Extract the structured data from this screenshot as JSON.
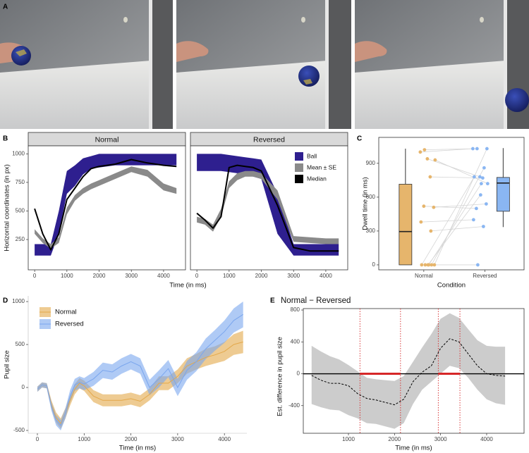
{
  "panel_a": {
    "label": "A"
  },
  "chart_data": [
    {
      "type": "band",
      "label": "B",
      "facets": [
        "Normal",
        "Reversed"
      ],
      "xlabel": "Time (in ms)",
      "ylabel": "Horizontal coordinates (in px)",
      "legend": "right",
      "x": [
        0,
        250,
        500,
        750,
        1000,
        1250,
        1500,
        1750,
        2000,
        2500,
        3000,
        3500,
        4000,
        4400
      ],
      "series": [
        {
          "name": "Ball",
          "color": "#2e1f8f",
          "lower": [
            [
              110,
              110,
              110,
              300,
              650,
              720,
              820,
              870,
              880,
              900,
              900,
              900,
              900,
              900
            ],
            [
              850,
              850,
              850,
              850,
              840,
              830,
              820,
              800,
              780,
              300,
              110,
              110,
              110,
              110
            ]
          ],
          "upper": [
            [
              210,
              210,
              210,
              500,
              850,
              900,
              960,
              980,
              1000,
              1000,
              1000,
              1000,
              1000,
              1000
            ],
            [
              1000,
              1000,
              1000,
              1000,
              990,
              980,
              970,
              960,
              950,
              650,
              210,
              210,
              210,
              210
            ]
          ]
        },
        {
          "name": "Mean ± SE",
          "color": "#8a8a8a",
          "lower": [
            [
              300,
              220,
              170,
              220,
              470,
              590,
              650,
              690,
              720,
              780,
              840,
              800,
              680,
              650
            ],
            [
              400,
              380,
              320,
              450,
              700,
              770,
              800,
              800,
              780,
              600,
              230,
              220,
              210,
              210
            ]
          ],
          "upper": [
            [
              340,
              260,
              210,
              270,
              530,
              640,
              700,
              740,
              770,
              830,
              890,
              860,
              740,
              700
            ],
            [
              450,
              430,
              380,
              520,
              760,
              830,
              850,
              850,
              830,
              680,
              280,
              270,
              260,
              260
            ]
          ]
        },
        {
          "name": "Median",
          "color": "#000000",
          "values": [
            [
              520,
              300,
              160,
              300,
              600,
              700,
              800,
              870,
              890,
              910,
              950,
              920,
              900,
              890
            ],
            [
              480,
              420,
              350,
              450,
              880,
              900,
              890,
              880,
              850,
              550,
              180,
              150,
              150,
              150
            ]
          ]
        }
      ],
      "xlim": [
        -200,
        4680
      ],
      "ylim": [
        -15,
        1070
      ],
      "xticks": [
        0,
        1000,
        2000,
        3000,
        4000
      ],
      "yticks": [
        250,
        500,
        750,
        1000
      ]
    },
    {
      "type": "box",
      "label": "C",
      "xlabel": "Condition",
      "ylabel": "Dwell time (in ms)",
      "categories": [
        "Normal",
        "Reversed"
      ],
      "colors": [
        "#e6b56c",
        "#8ab6f2"
      ],
      "boxes": [
        {
          "min": 0,
          "q1": 0,
          "median": 295,
          "q3": 715,
          "max": 1030
        },
        {
          "min": 335,
          "q1": 475,
          "median": 725,
          "q3": 775,
          "max": 1035
        }
      ],
      "points": [
        [
          1000,
          780,
          520,
          510,
          940,
          380,
          300,
          1020,
          0,
          0,
          0,
          0,
          0,
          930,
          0
        ],
        [
          1030,
          770,
          500,
          540,
          780,
          400,
          340,
          1030,
          1030,
          620,
          780,
          860,
          0,
          720,
          720
        ]
      ],
      "ylim": [
        -44,
        1130
      ],
      "yticks": [
        0,
        300,
        600,
        900
      ]
    },
    {
      "type": "ribbon",
      "label": "D",
      "xlabel": "Time (in ms)",
      "ylabel": "Pupil size",
      "legend": "top-left",
      "x": [
        0,
        100,
        200,
        300,
        400,
        500,
        600,
        700,
        800,
        900,
        1000,
        1200,
        1400,
        1600,
        1800,
        2000,
        2200,
        2400,
        2600,
        2800,
        3000,
        3200,
        3400,
        3600,
        3800,
        4000,
        4200,
        4400
      ],
      "series": [
        {
          "name": "Normal",
          "color": "#e3a84a",
          "values": [
            -20,
            30,
            20,
            -200,
            -350,
            -420,
            -300,
            -150,
            -20,
            50,
            20,
            -100,
            -150,
            -150,
            -150,
            -130,
            -160,
            -80,
            50,
            50,
            130,
            250,
            300,
            350,
            380,
            420,
            500,
            530
          ],
          "lower": [
            -50,
            0,
            -10,
            -250,
            -410,
            -480,
            -360,
            -210,
            -80,
            -10,
            -40,
            -170,
            -220,
            -220,
            -220,
            -200,
            -230,
            -150,
            -30,
            -30,
            50,
            160,
            210,
            250,
            280,
            310,
            380,
            400
          ],
          "upper": [
            10,
            60,
            50,
            -150,
            -290,
            -360,
            -240,
            -90,
            40,
            110,
            80,
            -30,
            -80,
            -80,
            -80,
            -60,
            -90,
            -10,
            130,
            130,
            210,
            340,
            390,
            450,
            480,
            530,
            620,
            660
          ]
        },
        {
          "name": "Reversed",
          "color": "#7aa6ee",
          "values": [
            -20,
            30,
            20,
            -220,
            -380,
            -440,
            -300,
            -100,
            30,
            60,
            40,
            100,
            200,
            180,
            250,
            300,
            250,
            0,
            100,
            220,
            0,
            200,
            300,
            450,
            550,
            650,
            780,
            850
          ],
          "lower": [
            -50,
            0,
            -10,
            -270,
            -440,
            -500,
            -360,
            -170,
            -40,
            -10,
            -30,
            20,
            110,
            90,
            160,
            210,
            160,
            -90,
            0,
            120,
            -100,
            90,
            190,
            330,
            430,
            520,
            640,
            700
          ],
          "upper": [
            10,
            60,
            50,
            -170,
            -320,
            -380,
            -240,
            -30,
            100,
            130,
            110,
            180,
            290,
            270,
            340,
            390,
            340,
            90,
            200,
            320,
            100,
            310,
            410,
            570,
            670,
            780,
            920,
            1000
          ]
        }
      ],
      "xlim": [
        -196,
        4480
      ],
      "ylim": [
        -533,
        1066
      ],
      "xticks": [
        0,
        1000,
        2000,
        3000,
        4000
      ],
      "yticks": [
        -500,
        0,
        500,
        1000
      ]
    },
    {
      "type": "diff",
      "label": "E",
      "title": "Normal − Reversed",
      "xlabel": "Time (in ms)",
      "ylabel": "Est. difference in pupil size",
      "x": [
        200,
        400,
        600,
        800,
        1000,
        1200,
        1400,
        1600,
        1800,
        2000,
        2200,
        2400,
        2600,
        2800,
        3000,
        3200,
        3400,
        3600,
        3800,
        4000,
        4200,
        4400
      ],
      "values": [
        -20,
        -80,
        -120,
        -120,
        -150,
        -250,
        -310,
        -330,
        -360,
        -390,
        -320,
        -100,
        20,
        100,
        320,
        440,
        400,
        250,
        100,
        0,
        -20,
        -30
      ],
      "lower": [
        -380,
        -420,
        -450,
        -460,
        -520,
        -560,
        -620,
        -630,
        -660,
        -690,
        -620,
        -380,
        -200,
        -100,
        0,
        100,
        70,
        -50,
        -200,
        -320,
        -370,
        -390
      ],
      "upper": [
        350,
        280,
        220,
        180,
        110,
        30,
        -50,
        -70,
        -80,
        -90,
        -30,
        150,
        330,
        500,
        690,
        760,
        700,
        560,
        420,
        350,
        340,
        340
      ],
      "color": "#000000",
      "band_color": "#cccccc",
      "reference": 0,
      "vlines": [
        1250,
        2130,
        2950,
        3420
      ],
      "segments": [
        [
          1250,
          2130
        ],
        [
          2950,
          3420
        ]
      ],
      "highlight_color": "#d62728",
      "xlim": [
        20,
        4812
      ],
      "ylim": [
        -747,
        818
      ],
      "xticks": [
        1000,
        2000,
        3000,
        4000
      ],
      "yticks": [
        -400,
        0,
        400,
        800
      ]
    }
  ]
}
